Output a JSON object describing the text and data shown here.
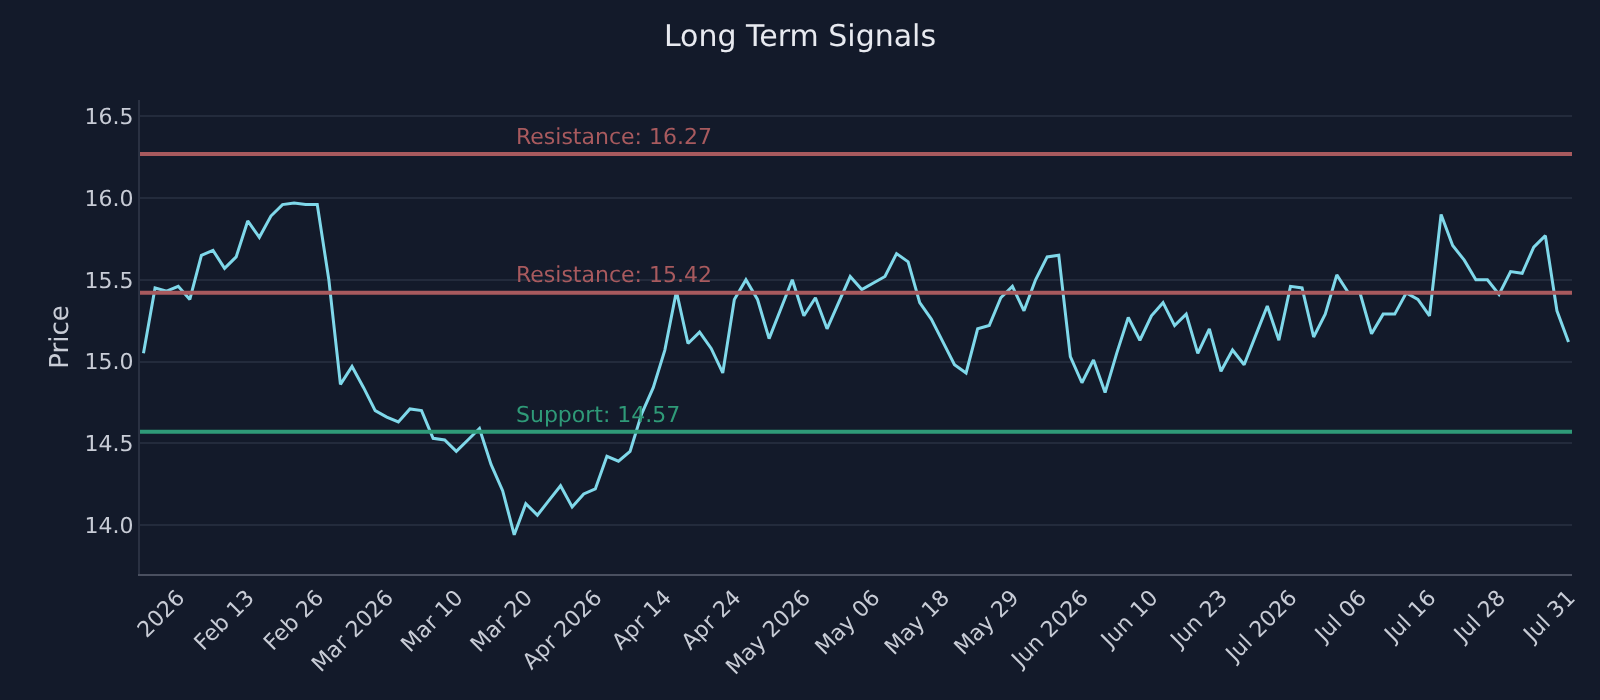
{
  "chart_data": {
    "type": "line",
    "title": "Long Term Signals",
    "ylabel": "Price",
    "categories": [
      null,
      null,
      null,
      "2026",
      null,
      null,
      null,
      null,
      null,
      "Feb 13",
      null,
      null,
      null,
      null,
      null,
      "Feb 26",
      null,
      null,
      null,
      null,
      null,
      "Mar 2026",
      null,
      null,
      null,
      null,
      null,
      "Mar 10",
      null,
      null,
      null,
      null,
      null,
      "Mar 20",
      null,
      null,
      null,
      null,
      null,
      "Apr 2026",
      null,
      null,
      null,
      null,
      null,
      "Apr 14",
      null,
      null,
      null,
      null,
      null,
      "Apr 24",
      null,
      null,
      null,
      null,
      null,
      "May 2026",
      null,
      null,
      null,
      null,
      null,
      "May 06",
      null,
      null,
      null,
      null,
      null,
      "May 18",
      null,
      null,
      null,
      null,
      null,
      "May 29",
      null,
      null,
      null,
      null,
      null,
      "Jun 2026",
      null,
      null,
      null,
      null,
      null,
      "Jun 10",
      null,
      null,
      null,
      null,
      null,
      "Jun 23",
      null,
      null,
      null,
      null,
      null,
      "Jul 2026",
      null,
      null,
      null,
      null,
      null,
      "Jul 06",
      null,
      null,
      null,
      null,
      null,
      "Jul 16",
      null,
      null,
      null,
      null,
      null,
      "Jul 28",
      null,
      null,
      null,
      null,
      null,
      "Jul 31"
    ],
    "series": [
      {
        "color": "#7fd8ea",
        "values": [
          15.05,
          15.45,
          15.43,
          15.46,
          15.38,
          15.65,
          15.68,
          15.57,
          15.64,
          15.86,
          15.76,
          15.89,
          15.96,
          15.97,
          15.96,
          15.96,
          15.5,
          14.86,
          14.97,
          14.84,
          14.7,
          14.66,
          14.63,
          14.71,
          14.7,
          14.53,
          14.52,
          14.45,
          14.52,
          14.59,
          14.37,
          14.21,
          13.94,
          14.13,
          14.06,
          14.15,
          14.24,
          14.11,
          14.19,
          14.22,
          14.42,
          14.39,
          14.45,
          14.68,
          14.84,
          15.07,
          15.43,
          15.11,
          15.18,
          15.08,
          14.93,
          15.38,
          15.5,
          15.38,
          15.14,
          15.32,
          15.5,
          15.28,
          15.39,
          15.2,
          15.36,
          15.52,
          15.44,
          15.48,
          15.52,
          15.66,
          15.61,
          15.36,
          15.26,
          15.12,
          14.98,
          14.93,
          15.2,
          15.22,
          15.39,
          15.46,
          15.31,
          15.5,
          15.64,
          15.65,
          15.03,
          14.87,
          15.01,
          14.81,
          15.05,
          15.27,
          15.13,
          15.28,
          15.36,
          15.22,
          15.29,
          15.05,
          15.2,
          14.94,
          15.07,
          14.98,
          15.16,
          15.34,
          15.13,
          15.46,
          15.45,
          15.15,
          15.29,
          15.53,
          15.42,
          15.42,
          15.17,
          15.29,
          15.29,
          15.42,
          15.38,
          15.28,
          15.9,
          15.71,
          15.62,
          15.5,
          15.5,
          15.41,
          15.55,
          15.54,
          15.7,
          15.77,
          15.31,
          15.12
        ]
      }
    ],
    "ylim": [
      13.7,
      16.6
    ],
    "yticks": [
      {
        "value": 14,
        "label": "14.0"
      },
      {
        "value": 14.5,
        "label": "14.5"
      },
      {
        "value": 15,
        "label": "15.0"
      },
      {
        "value": 15.5,
        "label": "15.5"
      },
      {
        "value": 16,
        "label": "16.0"
      },
      {
        "value": 16.5,
        "label": "16.5"
      }
    ],
    "ref_lines": [
      {
        "axis": "y",
        "value": 16.27,
        "label": "Resistance: 16.27",
        "color": "#a85a5e"
      },
      {
        "axis": "y",
        "value": 15.42,
        "label": "Resistance: 15.42",
        "color": "#a85a5e"
      },
      {
        "axis": "y",
        "value": 14.57,
        "label": "Support: 14.57",
        "color": "#2f9a78"
      }
    ],
    "grid": "y",
    "legend": false,
    "marker": "none",
    "line_style": "solid"
  }
}
